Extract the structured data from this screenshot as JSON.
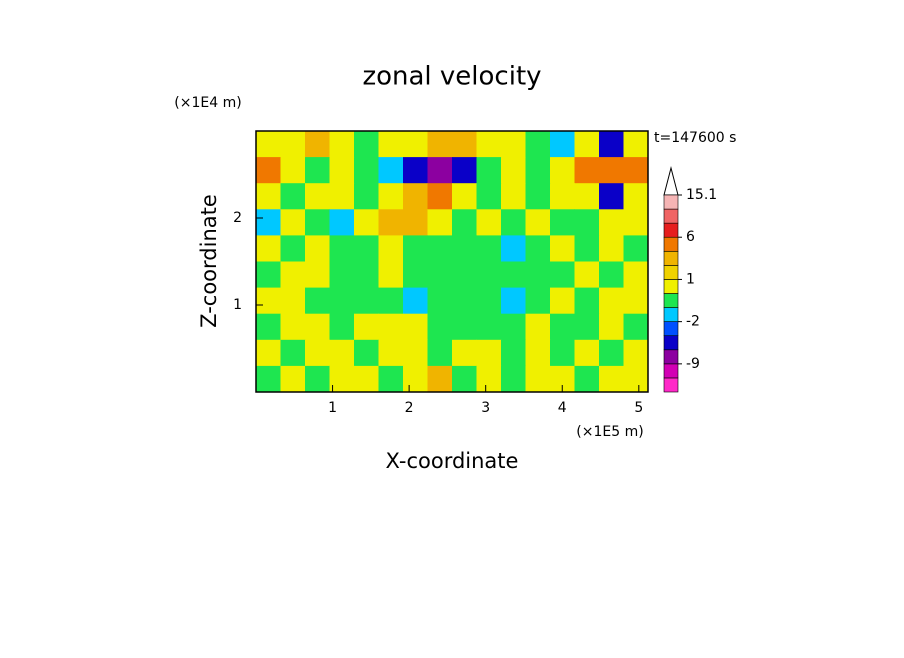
{
  "chart_data": {
    "type": "contour",
    "title": "zonal velocity",
    "time_label": "t=147600 s",
    "xlabel": "X-coordinate",
    "ylabel": "Z-coordinate",
    "x_unit": "(×1E5 m)",
    "y_unit": "(×1E4 m)",
    "xlim": [
      0,
      5.12
    ],
    "ylim": [
      0,
      3
    ],
    "xticks": [
      1,
      2,
      3,
      4,
      5
    ],
    "yticks": [
      1,
      2
    ],
    "x": [
      0.16,
      0.48,
      0.8,
      1.12,
      1.44,
      1.76,
      2.08,
      2.4,
      2.72,
      3.04,
      3.36,
      3.68,
      4.0,
      4.32,
      4.64,
      4.96
    ],
    "y": [
      2.85,
      2.55,
      2.25,
      1.95,
      1.65,
      1.35,
      1.05,
      0.75,
      0.45,
      0.15
    ],
    "z": [
      [
        0.5,
        0.5,
        2.5,
        0.5,
        -0.5,
        0.5,
        0.5,
        2.5,
        2.5,
        0.5,
        0.5,
        -0.5,
        -1.5,
        0.5,
        -5,
        0.5
      ],
      [
        4,
        0.5,
        -0.5,
        0.5,
        -0.5,
        -1.5,
        -5,
        -8,
        -5,
        -0.5,
        0.5,
        -0.5,
        0.5,
        4,
        4,
        4
      ],
      [
        0.5,
        -0.5,
        0.5,
        0.5,
        -0.5,
        0.5,
        2.5,
        4,
        0.5,
        -0.5,
        0.5,
        -0.5,
        0.5,
        0.5,
        -5,
        0.5
      ],
      [
        -1.5,
        0.5,
        -0.5,
        -1.5,
        0.5,
        2.5,
        2.5,
        0.5,
        -0.5,
        0.5,
        -0.5,
        0.5,
        -0.5,
        -0.5,
        0.5,
        0.5
      ],
      [
        0.5,
        -0.5,
        0.5,
        -0.5,
        -0.5,
        0.5,
        -0.5,
        -0.5,
        -0.5,
        -0.5,
        -1.5,
        -0.5,
        0.5,
        -0.5,
        0.5,
        -0.5
      ],
      [
        -0.5,
        0.5,
        0.5,
        -0.5,
        -0.5,
        0.5,
        -0.5,
        -0.5,
        -0.5,
        -0.5,
        -0.5,
        -0.5,
        -0.5,
        0.5,
        -0.5,
        0.5
      ],
      [
        0.5,
        0.5,
        -0.5,
        -0.5,
        -0.5,
        -0.5,
        -1.5,
        -0.5,
        -0.5,
        -0.5,
        -1.5,
        -0.5,
        0.5,
        -0.5,
        0.5,
        0.5
      ],
      [
        -0.5,
        0.5,
        0.5,
        -0.5,
        0.5,
        0.5,
        0.5,
        -0.5,
        -0.5,
        -0.5,
        -0.5,
        0.5,
        -0.5,
        -0.5,
        0.5,
        -0.5
      ],
      [
        0.5,
        -0.5,
        0.5,
        0.5,
        -0.5,
        0.5,
        0.5,
        -0.5,
        0.5,
        0.5,
        -0.5,
        0.5,
        -0.5,
        0.5,
        -0.5,
        0.5
      ],
      [
        -0.5,
        0.5,
        -0.5,
        0.5,
        0.5,
        -0.5,
        0.5,
        2.5,
        -0.5,
        0.5,
        -0.5,
        0.5,
        0.5,
        -0.5,
        0.5,
        0.5
      ]
    ],
    "levels": [
      -15,
      -12,
      -9,
      -6,
      -3,
      -2,
      -1,
      0,
      1,
      2,
      3,
      6,
      9,
      12,
      15.1
    ],
    "colors": [
      "#ff28c8",
      "#d200b4",
      "#8c00a0",
      "#0a00c8",
      "#0050ff",
      "#00c8ff",
      "#1ee650",
      "#f0f000",
      "#f0d200",
      "#f0b400",
      "#f07800",
      "#e61e1e",
      "#f06464",
      "#f5b4b4"
    ],
    "level_ticks": [
      15.1,
      6,
      1,
      -2,
      -9
    ]
  }
}
